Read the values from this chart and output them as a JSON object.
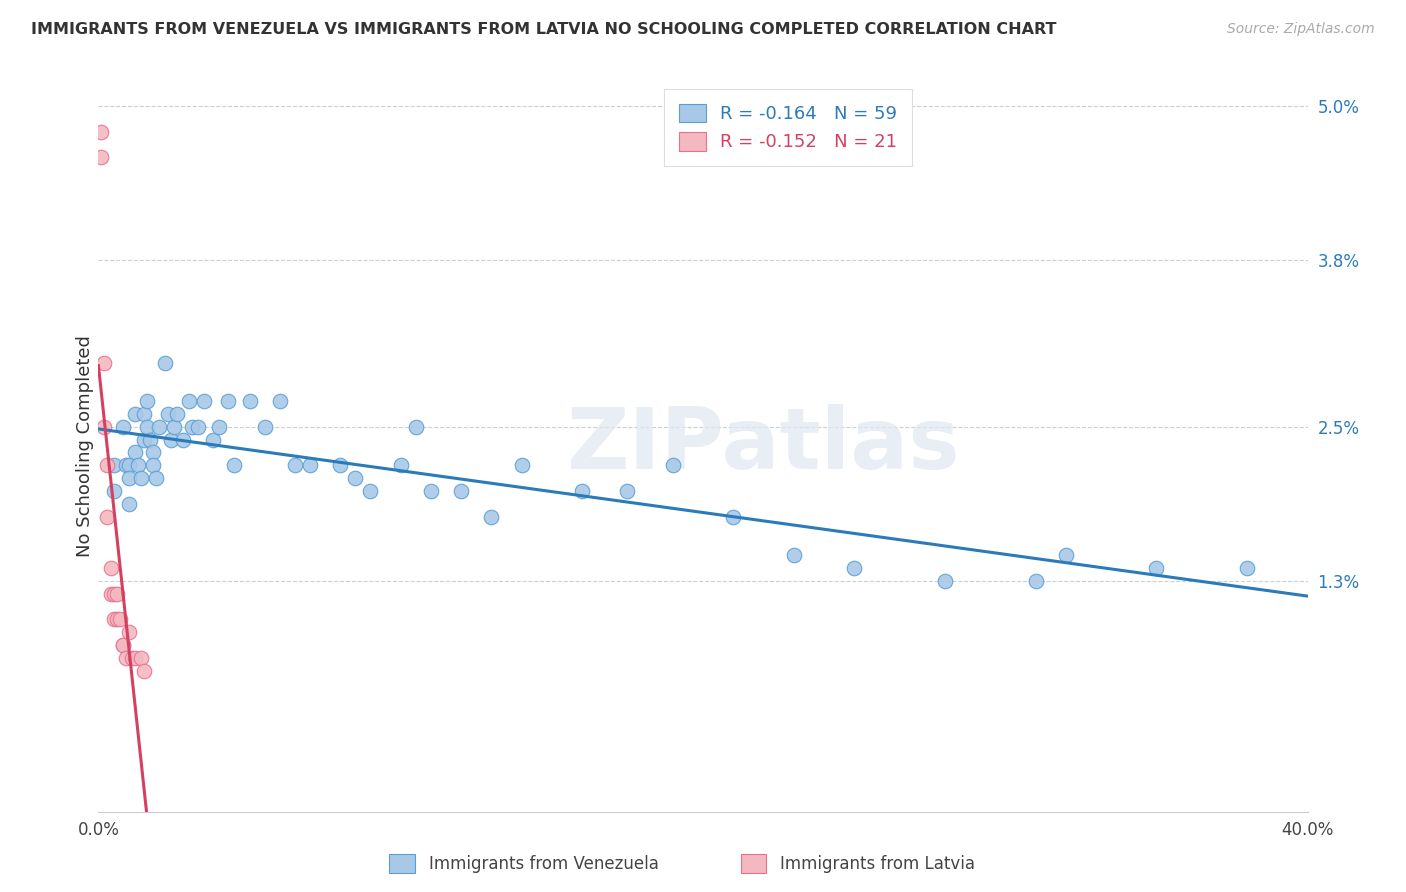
{
  "title": "IMMIGRANTS FROM VENEZUELA VS IMMIGRANTS FROM LATVIA NO SCHOOLING COMPLETED CORRELATION CHART",
  "source": "Source: ZipAtlas.com",
  "ylabel": "No Schooling Completed",
  "xlim": [
    0.0,
    0.4
  ],
  "ylim": [
    -0.005,
    0.052
  ],
  "yticks_right": [
    0.013,
    0.025,
    0.038,
    0.05
  ],
  "ytick_labels_right": [
    "1.3%",
    "2.5%",
    "3.8%",
    "5.0%"
  ],
  "xticks": [
    0.0,
    0.05,
    0.1,
    0.15,
    0.2,
    0.25,
    0.3,
    0.35,
    0.4
  ],
  "xtick_labels": [
    "0.0%",
    "",
    "",
    "",
    "",
    "",
    "",
    "",
    "40.0%"
  ],
  "watermark": "ZIPatlas",
  "legend_r1": "-0.164",
  "legend_n1": "59",
  "legend_r2": "-0.152",
  "legend_n2": "21",
  "blue_color": "#a8c8e8",
  "blue_edge": "#5a9fd4",
  "pink_color": "#f4b8c0",
  "pink_edge": "#e87090",
  "trend_blue": "#2b7bba",
  "trend_pink": "#d44060",
  "background_color": "#ffffff",
  "grid_color": "#c8d0d8",
  "venezuela_x": [
    0.005,
    0.005,
    0.008,
    0.009,
    0.01,
    0.01,
    0.01,
    0.012,
    0.012,
    0.013,
    0.014,
    0.015,
    0.015,
    0.016,
    0.016,
    0.017,
    0.018,
    0.018,
    0.019,
    0.02,
    0.022,
    0.023,
    0.024,
    0.025,
    0.026,
    0.028,
    0.03,
    0.031,
    0.033,
    0.035,
    0.038,
    0.04,
    0.043,
    0.045,
    0.05,
    0.055,
    0.06,
    0.065,
    0.07,
    0.08,
    0.085,
    0.09,
    0.1,
    0.105,
    0.11,
    0.12,
    0.13,
    0.14,
    0.16,
    0.175,
    0.19,
    0.21,
    0.23,
    0.25,
    0.28,
    0.31,
    0.32,
    0.35,
    0.38
  ],
  "venezuela_y": [
    0.022,
    0.02,
    0.025,
    0.022,
    0.022,
    0.021,
    0.019,
    0.026,
    0.023,
    0.022,
    0.021,
    0.026,
    0.024,
    0.027,
    0.025,
    0.024,
    0.023,
    0.022,
    0.021,
    0.025,
    0.03,
    0.026,
    0.024,
    0.025,
    0.026,
    0.024,
    0.027,
    0.025,
    0.025,
    0.027,
    0.024,
    0.025,
    0.027,
    0.022,
    0.027,
    0.025,
    0.027,
    0.022,
    0.022,
    0.022,
    0.021,
    0.02,
    0.022,
    0.025,
    0.02,
    0.02,
    0.018,
    0.022,
    0.02,
    0.02,
    0.022,
    0.018,
    0.015,
    0.014,
    0.013,
    0.013,
    0.015,
    0.014,
    0.014
  ],
  "latvia_x": [
    0.001,
    0.001,
    0.002,
    0.002,
    0.003,
    0.003,
    0.004,
    0.004,
    0.005,
    0.005,
    0.006,
    0.006,
    0.007,
    0.008,
    0.008,
    0.009,
    0.01,
    0.011,
    0.012,
    0.014,
    0.015
  ],
  "latvia_y": [
    0.048,
    0.046,
    0.03,
    0.025,
    0.022,
    0.018,
    0.014,
    0.012,
    0.012,
    0.01,
    0.012,
    0.01,
    0.01,
    0.008,
    0.008,
    0.007,
    0.009,
    0.007,
    0.007,
    0.007,
    0.006
  ]
}
